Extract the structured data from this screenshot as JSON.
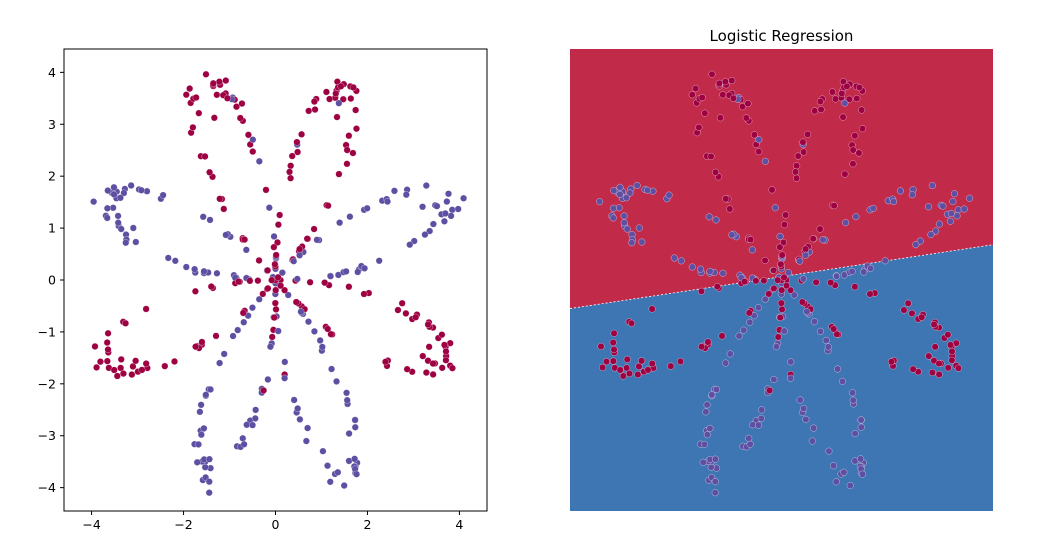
{
  "colors": {
    "class_red": "#9e0142",
    "class_blue": "#5e4fa2",
    "region_red": "#c22a4a",
    "region_blue": "#3e76b4",
    "dot_edge": "#ffffff"
  },
  "chart_data": [
    {
      "type": "scatter",
      "title": "",
      "xlabel": "",
      "ylabel": "",
      "xlim": [
        -4.6,
        4.6
      ],
      "ylim": [
        -4.45,
        4.45
      ],
      "xticks": [
        -4,
        -2,
        0,
        2,
        4
      ],
      "yticks": [
        -4,
        -3,
        -2,
        -1,
        0,
        1,
        2,
        3,
        4
      ],
      "xtick_labels": [
        "−4",
        "−2",
        "0",
        "2",
        "4"
      ],
      "ytick_labels": [
        "−4",
        "−3",
        "−2",
        "−1",
        "0",
        "1",
        "2",
        "3",
        "4"
      ],
      "grid": false,
      "legend": "none",
      "pattern": {
        "petals": 8,
        "petal_peak_radius": 4.0,
        "points_per_class": 200,
        "classes": [
          {
            "label": 0,
            "color": "#9e0142",
            "petals": "upper-left, upper-right, left-lower, right-lower"
          },
          {
            "label": 1,
            "color": "#5e4fa2",
            "petals": "left-upper, right-upper, lower-left, lower-right"
          }
        ]
      }
    },
    {
      "type": "scatter",
      "title": "Logistic Regression",
      "xlabel": "",
      "ylabel": "",
      "axes_visible": false,
      "same_points_as_first_chart": true,
      "xlim": [
        -4.6,
        4.6
      ],
      "ylim": [
        -4.45,
        4.45
      ],
      "decision_boundary": {
        "type": "line",
        "points": [
          [
            -4.6,
            -0.55
          ],
          [
            4.6,
            0.68
          ]
        ],
        "above_class": 0,
        "below_class": 1
      },
      "grid": false,
      "legend": "none"
    }
  ]
}
